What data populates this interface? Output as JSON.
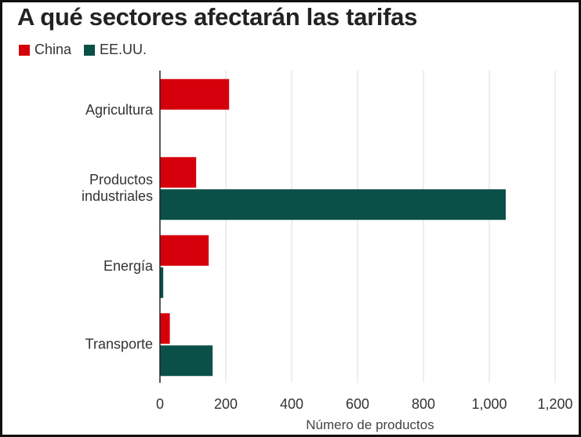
{
  "title": "A qué sectores afectarán las tarifas",
  "legend": {
    "china": {
      "label": "China",
      "color": "#d6000d"
    },
    "us": {
      "label": "EE.UU.",
      "color": "#0a5048"
    }
  },
  "chart_data": {
    "type": "bar",
    "orientation": "horizontal",
    "title": "A qué sectores afectarán las tarifas",
    "xlabel": "Número de productos",
    "ylabel": "",
    "xlim": [
      0,
      1200
    ],
    "xticks": [
      0,
      200,
      400,
      600,
      800,
      1000,
      1200
    ],
    "xtick_labels": [
      "0",
      "200",
      "400",
      "600",
      "800",
      "1,000",
      "1,200"
    ],
    "grid": true,
    "legend_position": "top-left",
    "categories": [
      {
        "key": "agricultura",
        "label_lines": [
          "Agricultura"
        ]
      },
      {
        "key": "productos-industriales",
        "label_lines": [
          "Productos",
          "industriales"
        ]
      },
      {
        "key": "energia",
        "label_lines": [
          "Energía"
        ]
      },
      {
        "key": "transporte",
        "label_lines": [
          "Transporte"
        ]
      }
    ],
    "series": [
      {
        "name": "China",
        "key": "china",
        "color": "#d6000d",
        "values": [
          210,
          110,
          148,
          30
        ]
      },
      {
        "name": "EE.UU.",
        "key": "us",
        "color": "#0a5048",
        "values": [
          0,
          1050,
          10,
          160
        ]
      }
    ]
  }
}
